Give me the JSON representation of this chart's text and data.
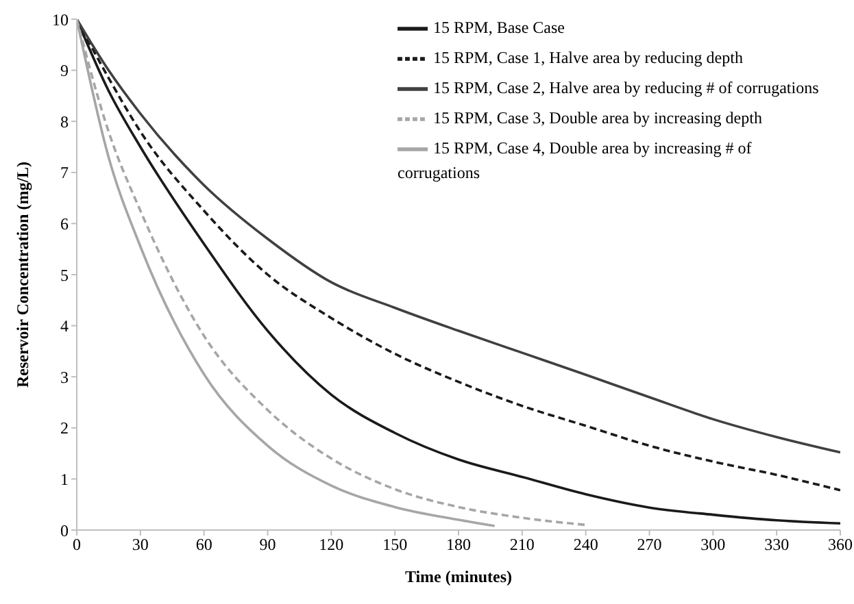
{
  "chart_data": {
    "type": "line",
    "xlabel": "Time (minutes)",
    "ylabel": "Reservoir Concentration (mg/L)",
    "xlim": [
      0,
      360
    ],
    "xticks": [
      0,
      30,
      60,
      90,
      120,
      150,
      180,
      210,
      240,
      270,
      300,
      330,
      360
    ],
    "ylim": [
      0,
      10
    ],
    "yticks": [
      0,
      1,
      2,
      3,
      4,
      5,
      6,
      7,
      8,
      9,
      10
    ],
    "grid": false,
    "legend": "top right",
    "marker": "none",
    "series": [
      {
        "name": "15 RPM, Base Case",
        "color": "#1a1a1a",
        "line_style": "solid",
        "x": [
          0,
          15,
          30,
          60,
          90,
          120,
          150,
          180,
          210,
          240,
          270,
          300,
          330,
          360
        ],
        "values": [
          10,
          8.6,
          7.5,
          5.6,
          3.9,
          2.65,
          1.9,
          1.38,
          1.04,
          0.7,
          0.44,
          0.3,
          0.19,
          0.13
        ]
      },
      {
        "name": "15 RPM, Case 1, Halve area by reducing depth",
        "color": "#1a1a1a",
        "line_style": "dashed",
        "x": [
          0,
          15,
          30,
          60,
          90,
          120,
          150,
          180,
          210,
          240,
          270,
          300,
          330,
          360
        ],
        "values": [
          10,
          8.85,
          7.8,
          6.25,
          5.0,
          4.15,
          3.45,
          2.9,
          2.43,
          2.04,
          1.65,
          1.34,
          1.08,
          0.78
        ]
      },
      {
        "name": "15 RPM, Case 2, Halve area by reducing # of corrugations",
        "color": "#404040",
        "line_style": "solid",
        "x": [
          0,
          15,
          30,
          60,
          90,
          120,
          150,
          180,
          210,
          240,
          270,
          300,
          330,
          360
        ],
        "values": [
          10,
          9.0,
          8.15,
          6.75,
          5.7,
          4.85,
          4.35,
          3.9,
          3.47,
          3.04,
          2.6,
          2.17,
          1.82,
          1.52
        ]
      },
      {
        "name": "15 RPM, Case 3, Double area by increasing depth",
        "color": "#a6a6a6",
        "line_style": "dashed",
        "x": [
          0,
          15,
          30,
          60,
          90,
          120,
          150,
          180,
          210,
          240
        ],
        "values": [
          10,
          7.8,
          6.25,
          3.8,
          2.35,
          1.4,
          0.8,
          0.45,
          0.24,
          0.1
        ]
      },
      {
        "name": "15 RPM, Case 4, Double area by increasing # of corrugations",
        "color": "#a6a6a6",
        "line_style": "solid",
        "x": [
          0,
          15,
          30,
          60,
          90,
          120,
          150,
          180,
          197
        ],
        "values": [
          10,
          7.3,
          5.55,
          3.05,
          1.65,
          0.87,
          0.45,
          0.2,
          0.08
        ]
      }
    ]
  }
}
